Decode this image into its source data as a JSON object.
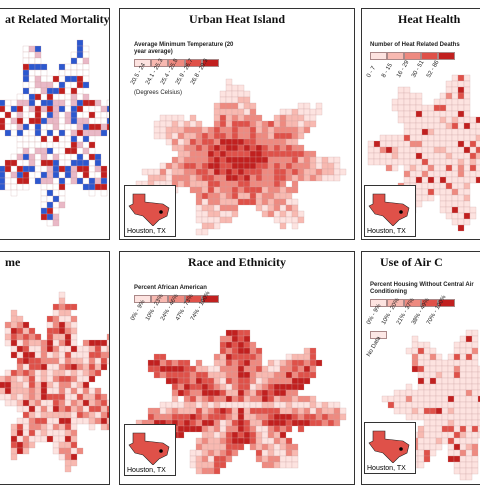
{
  "panels": [
    {
      "title": "at Related Mortality",
      "type": "bivariate"
    },
    {
      "title": "Urban Heat Island",
      "legend": {
        "title": "Average Minimum Temperature (20 year average)",
        "classes": [
          "20.5 - 24",
          "24.1 - 25.3",
          "25.4 - 25.8",
          "25.9 - 26.7",
          "26.8 - 29.3"
        ],
        "unit": "(Degrees Celsius)"
      },
      "inset": "Houston, TX"
    },
    {
      "title": "Heat Health",
      "legend": {
        "title": "Number of Heat Related Deaths",
        "classes": [
          "0 - 7",
          "8 - 15",
          "16 - 29",
          "30 - 51",
          "52 - 86"
        ]
      },
      "inset": "Houston, TX"
    },
    {
      "title": "me"
    },
    {
      "title": "Race and Ethnicity",
      "legend": {
        "title": "Percent African American",
        "classes": [
          "0% - 9%",
          "10% - 23%",
          "24% - 46%",
          "47% - 73%",
          "74% - 100%"
        ]
      },
      "inset": "Houston, TX"
    },
    {
      "title": "Use of Air C",
      "legend": {
        "title": "Percent Housing Without Central Air Conditioning",
        "classes": [
          "0% - 9%",
          "10% - 20%",
          "21% - 37%",
          "38% - 49%",
          "70% - 100%"
        ],
        "nodata": "No Data"
      },
      "inset": "Houston, TX"
    }
  ],
  "colors": {
    "ramp": [
      "#fde3e0",
      "#f8b9b1",
      "#ee8a80",
      "#df5149",
      "#c1201f"
    ],
    "blue": "#2c58cf",
    "border": "#333333"
  }
}
